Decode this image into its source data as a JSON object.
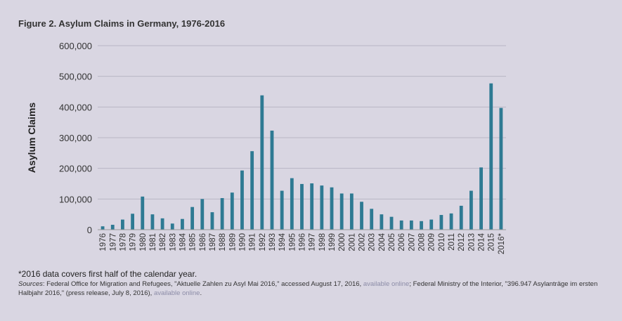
{
  "figure": {
    "title": "Figure 2. Asylum Claims in Germany, 1976-2016",
    "footnote": "*2016 data covers first half of the calendar year.",
    "sources": {
      "lead": "Sources",
      "part1": ": Federal Office for Migration and Refugees, \"Aktuelle Zahlen zu Asyl Mai 2016,\" accessed August 17, 2016, ",
      "link1": "available online",
      "part2": "; Federal Ministry of the Interior, \"396.947 Asylanträge im ersten Halbjahr 2016,\" (press release, July 8, 2016), ",
      "link2": "available online",
      "part3": "."
    }
  },
  "chart_data": {
    "type": "bar",
    "title": "Figure 2. Asylum Claims in Germany, 1976-2016",
    "xlabel": "",
    "ylabel": "Asylum Claims",
    "ylim": [
      0,
      600000
    ],
    "yticks": [
      0,
      100000,
      200000,
      300000,
      400000,
      500000,
      600000
    ],
    "ytick_labels": [
      "0",
      "100,000",
      "200,000",
      "300,000",
      "400,000",
      "500,000",
      "600,000"
    ],
    "grid": true,
    "bar_color": "#2e7a93",
    "categories": [
      "1976",
      "1977",
      "1978",
      "1979",
      "1980",
      "1981",
      "1982",
      "1983",
      "1984",
      "1985",
      "1986",
      "1987",
      "1988",
      "1989",
      "1990",
      "1991",
      "1992",
      "1993",
      "1994",
      "1995",
      "1996",
      "1997",
      "1998",
      "1999",
      "2000",
      "2001",
      "2002",
      "2003",
      "2004",
      "2005",
      "2006",
      "2007",
      "2008",
      "2009",
      "2010",
      "2011",
      "2012",
      "2013",
      "2014",
      "2015",
      "2016*"
    ],
    "values": [
      11000,
      16000,
      33000,
      52000,
      108000,
      50000,
      37000,
      20000,
      35000,
      74000,
      100000,
      57000,
      103000,
      121000,
      193000,
      256000,
      438000,
      323000,
      127000,
      168000,
      149000,
      151000,
      144000,
      138000,
      118000,
      118000,
      91000,
      68000,
      50000,
      42000,
      30000,
      30000,
      28000,
      33000,
      48000,
      53000,
      78000,
      127000,
      203000,
      477000,
      397000
    ]
  }
}
